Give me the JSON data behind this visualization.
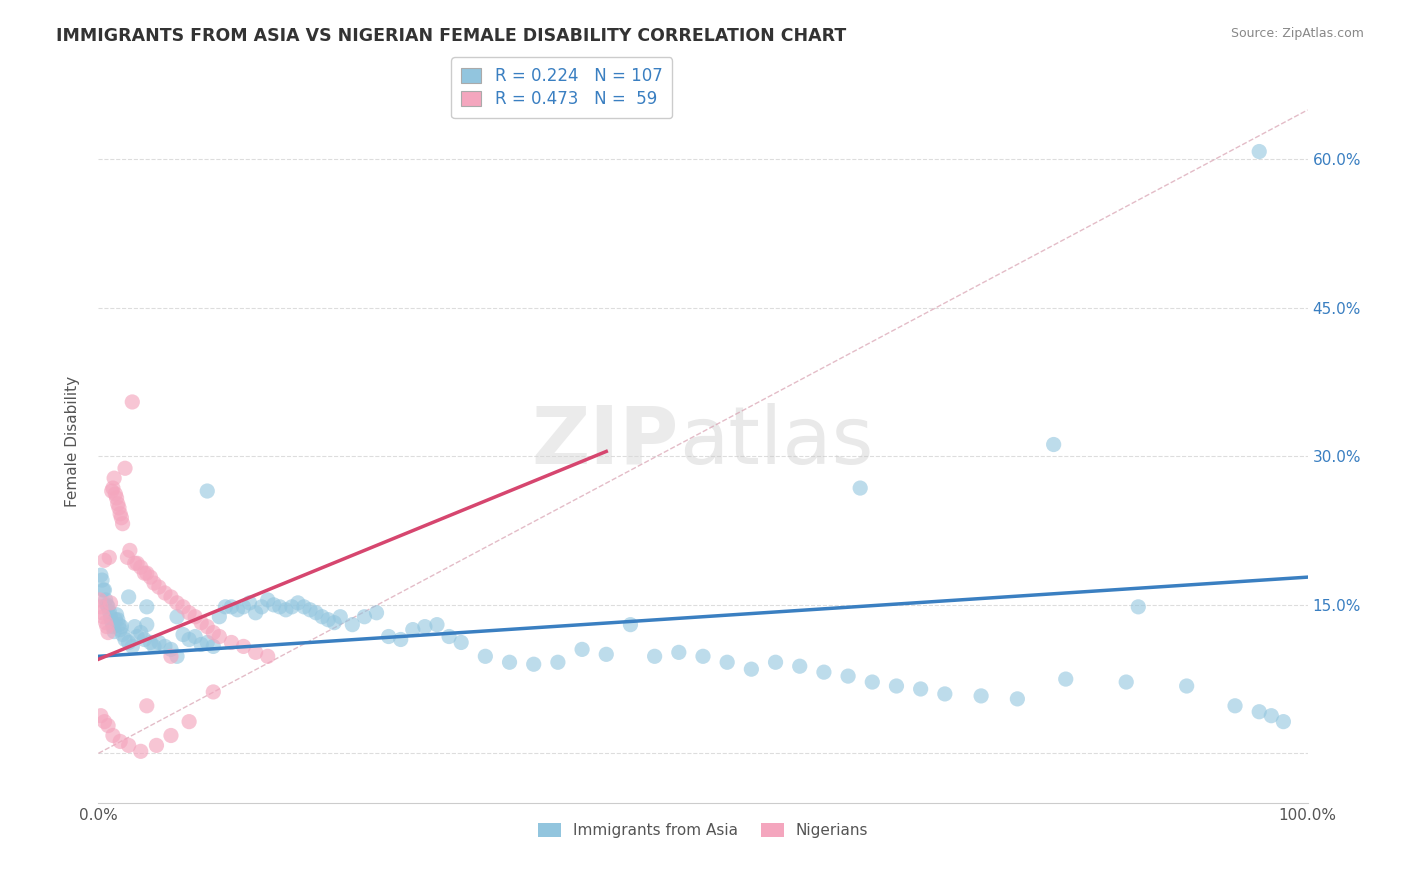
{
  "title": "IMMIGRANTS FROM ASIA VS NIGERIAN FEMALE DISABILITY CORRELATION CHART",
  "source": "Source: ZipAtlas.com",
  "ylabel": "Female Disability",
  "watermark_zip": "ZIP",
  "watermark_atlas": "atlas",
  "xlim": [
    0.0,
    1.0
  ],
  "ylim": [
    -0.05,
    0.68
  ],
  "yticks": [
    0.0,
    0.15,
    0.3,
    0.45,
    0.6
  ],
  "blue_color": "#92c5de",
  "pink_color": "#f4a6be",
  "blue_line_color": "#3a7fc1",
  "pink_line_color": "#d6466f",
  "legend_label_blue": "Immigrants from Asia",
  "legend_label_pink": "Nigerians",
  "title_color": "#333333",
  "source_color": "#888888",
  "axis_label_color": "#555555",
  "tick_color": "#555555",
  "grid_color": "#dddddd",
  "blue_scatter_x": [
    0.002,
    0.003,
    0.004,
    0.005,
    0.006,
    0.007,
    0.008,
    0.009,
    0.01,
    0.011,
    0.012,
    0.013,
    0.014,
    0.015,
    0.016,
    0.017,
    0.018,
    0.019,
    0.02,
    0.022,
    0.025,
    0.028,
    0.03,
    0.032,
    0.035,
    0.038,
    0.04,
    0.043,
    0.046,
    0.05,
    0.055,
    0.06,
    0.065,
    0.07,
    0.075,
    0.08,
    0.085,
    0.09,
    0.095,
    0.1,
    0.105,
    0.11,
    0.115,
    0.12,
    0.125,
    0.13,
    0.135,
    0.14,
    0.145,
    0.15,
    0.155,
    0.16,
    0.165,
    0.17,
    0.175,
    0.18,
    0.185,
    0.19,
    0.195,
    0.2,
    0.21,
    0.22,
    0.23,
    0.24,
    0.25,
    0.26,
    0.27,
    0.28,
    0.29,
    0.3,
    0.32,
    0.34,
    0.36,
    0.38,
    0.4,
    0.42,
    0.44,
    0.46,
    0.48,
    0.5,
    0.52,
    0.54,
    0.56,
    0.58,
    0.6,
    0.62,
    0.64,
    0.66,
    0.68,
    0.7,
    0.73,
    0.76,
    0.8,
    0.85,
    0.9,
    0.94,
    0.96,
    0.97,
    0.98,
    0.63,
    0.79,
    0.86,
    0.96,
    0.025,
    0.04,
    0.065,
    0.09
  ],
  "blue_scatter_y": [
    0.18,
    0.175,
    0.165,
    0.165,
    0.155,
    0.15,
    0.148,
    0.143,
    0.138,
    0.133,
    0.128,
    0.123,
    0.135,
    0.14,
    0.135,
    0.13,
    0.125,
    0.128,
    0.12,
    0.115,
    0.112,
    0.108,
    0.128,
    0.118,
    0.122,
    0.115,
    0.13,
    0.112,
    0.108,
    0.112,
    0.108,
    0.105,
    0.098,
    0.12,
    0.115,
    0.118,
    0.11,
    0.112,
    0.108,
    0.138,
    0.148,
    0.148,
    0.145,
    0.148,
    0.152,
    0.142,
    0.148,
    0.155,
    0.15,
    0.148,
    0.145,
    0.148,
    0.152,
    0.148,
    0.145,
    0.142,
    0.138,
    0.135,
    0.132,
    0.138,
    0.13,
    0.138,
    0.142,
    0.118,
    0.115,
    0.125,
    0.128,
    0.13,
    0.118,
    0.112,
    0.098,
    0.092,
    0.09,
    0.092,
    0.105,
    0.1,
    0.13,
    0.098,
    0.102,
    0.098,
    0.092,
    0.085,
    0.092,
    0.088,
    0.082,
    0.078,
    0.072,
    0.068,
    0.065,
    0.06,
    0.058,
    0.055,
    0.075,
    0.072,
    0.068,
    0.048,
    0.042,
    0.038,
    0.032,
    0.268,
    0.312,
    0.148,
    0.608,
    0.158,
    0.148,
    0.138,
    0.265
  ],
  "pink_scatter_x": [
    0.001,
    0.002,
    0.003,
    0.004,
    0.005,
    0.006,
    0.007,
    0.008,
    0.009,
    0.01,
    0.011,
    0.012,
    0.013,
    0.014,
    0.015,
    0.016,
    0.017,
    0.018,
    0.019,
    0.02,
    0.022,
    0.024,
    0.026,
    0.028,
    0.03,
    0.032,
    0.035,
    0.038,
    0.04,
    0.043,
    0.046,
    0.05,
    0.055,
    0.06,
    0.065,
    0.07,
    0.075,
    0.08,
    0.085,
    0.09,
    0.095,
    0.1,
    0.11,
    0.12,
    0.13,
    0.14,
    0.002,
    0.005,
    0.008,
    0.012,
    0.018,
    0.025,
    0.035,
    0.048,
    0.06,
    0.075,
    0.04,
    0.06,
    0.095
  ],
  "pink_scatter_y": [
    0.155,
    0.148,
    0.142,
    0.138,
    0.195,
    0.132,
    0.128,
    0.122,
    0.198,
    0.152,
    0.265,
    0.268,
    0.278,
    0.262,
    0.258,
    0.252,
    0.248,
    0.242,
    0.238,
    0.232,
    0.288,
    0.198,
    0.205,
    0.355,
    0.192,
    0.192,
    0.188,
    0.182,
    0.182,
    0.178,
    0.172,
    0.168,
    0.162,
    0.158,
    0.152,
    0.148,
    0.142,
    0.138,
    0.132,
    0.128,
    0.122,
    0.118,
    0.112,
    0.108,
    0.102,
    0.098,
    0.038,
    0.032,
    0.028,
    0.018,
    0.012,
    0.008,
    0.002,
    0.008,
    0.018,
    0.032,
    0.048,
    0.098,
    0.062
  ],
  "blue_trend_x": [
    0.0,
    1.0
  ],
  "blue_trend_y": [
    0.098,
    0.178
  ],
  "pink_trend_x": [
    0.0,
    0.42
  ],
  "pink_trend_y": [
    0.095,
    0.305
  ],
  "diag_line_x": [
    0.0,
    1.0
  ],
  "diag_line_y": [
    0.0,
    0.65
  ]
}
